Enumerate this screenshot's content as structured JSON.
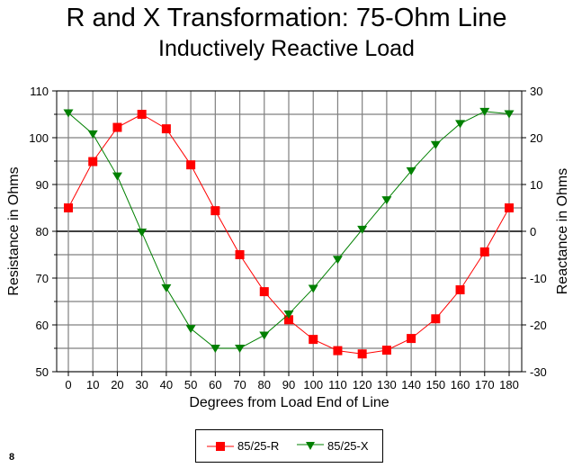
{
  "page_number": "8",
  "chart_data": {
    "type": "line",
    "title": "R and X Transformation: 75-Ohm Line",
    "subtitle": "Inductively Reactive Load",
    "xlabel": "Degrees from Load End of Line",
    "ylabel": "Resistance in Ohms",
    "y2label": "Reactance in Ohms",
    "categories": [
      "0",
      "10",
      "20",
      "30",
      "40",
      "50",
      "60",
      "70",
      "80",
      "90",
      "100",
      "110",
      "120",
      "130",
      "140",
      "150",
      "160",
      "170",
      "180"
    ],
    "ylim": [
      50,
      110
    ],
    "y_ticks": [
      "50",
      "60",
      "70",
      "80",
      "90",
      "100",
      "110"
    ],
    "y2lim": [
      -30,
      30
    ],
    "y2_ticks": [
      "-30",
      "-20",
      "-10",
      "0",
      "10",
      "20",
      "30"
    ],
    "grid": true,
    "legend_placement": "bottom",
    "series": [
      {
        "name": "85/25-R",
        "axis": "left",
        "color": "#ff0000",
        "marker": "square",
        "values": [
          85,
          94.9,
          102.2,
          105,
          101.9,
          94.2,
          84.4,
          75,
          67.1,
          61.1,
          56.9,
          54.5,
          53.8,
          54.6,
          57.1,
          61.3,
          67.5,
          75.6,
          85
        ]
      },
      {
        "name": "85/25-X",
        "axis": "right",
        "color": "#008000",
        "marker": "triangle-down",
        "values": [
          25.3,
          20.8,
          11.8,
          -0.2,
          -12.1,
          -20.8,
          -25,
          -25,
          -22.2,
          -17.7,
          -12.2,
          -6,
          0.4,
          6.7,
          12.9,
          18.5,
          23,
          25.6,
          25.1
        ]
      }
    ]
  }
}
